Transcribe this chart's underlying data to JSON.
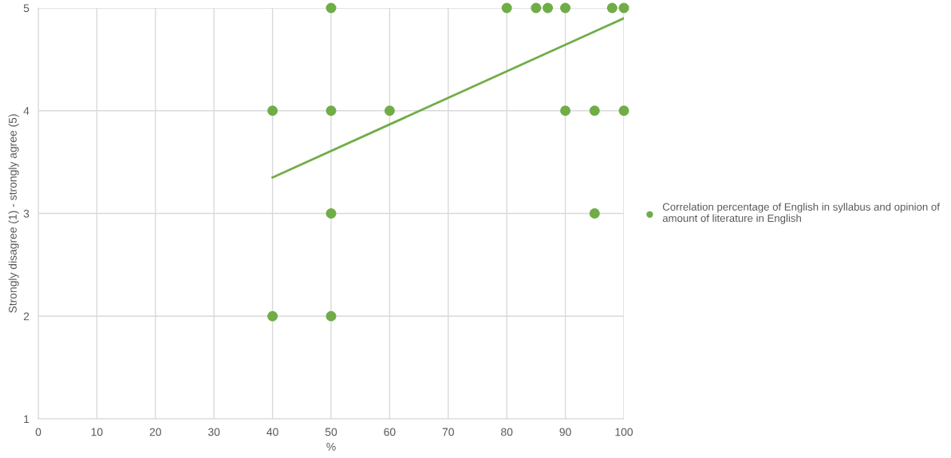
{
  "chart_data": {
    "type": "scatter",
    "xlabel": "%",
    "ylabel": "Strongly disagree (1) - strongly agree (5)",
    "xlim": [
      0,
      100
    ],
    "xticks": [
      0,
      10,
      20,
      30,
      40,
      50,
      60,
      70,
      80,
      90,
      100
    ],
    "ylim": [
      1,
      5
    ],
    "yticks": [
      1,
      2,
      3,
      4,
      5
    ],
    "grid": true,
    "legend": "right",
    "series": [
      {
        "name": "Correlation percentage of English in syllabus and opinion of amount of literature in English",
        "color": "#70ad47",
        "marker": "circle",
        "x": [
          50,
          80,
          85,
          87,
          90,
          98,
          100,
          40,
          50,
          60,
          90,
          95,
          100,
          50,
          95,
          40,
          50
        ],
        "values": [
          5,
          5,
          5,
          5,
          5,
          5,
          5,
          4,
          4,
          4,
          4,
          4,
          4,
          3,
          3,
          2,
          2
        ]
      },
      {
        "type": "line",
        "color": "#70ad47",
        "x": [
          40,
          100
        ],
        "values": [
          3.35,
          4.9
        ]
      }
    ]
  }
}
